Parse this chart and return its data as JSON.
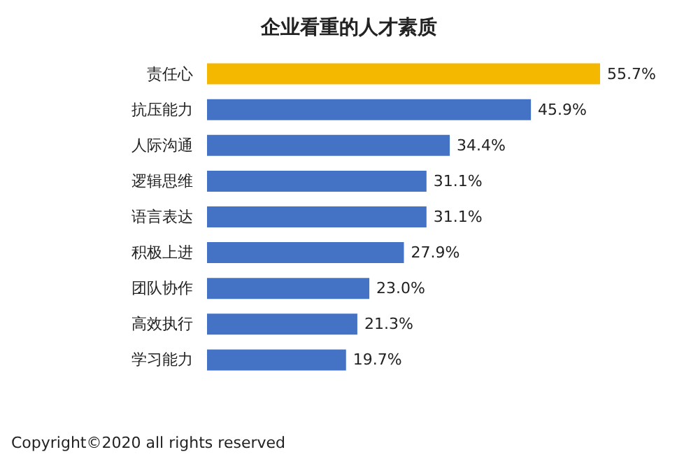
{
  "chart_data": {
    "type": "bar",
    "orientation": "horizontal",
    "title": "企业看重的人才素质",
    "categories": [
      "责任心",
      "抗压能力",
      "人际沟通",
      "逻辑思维",
      "语言表达",
      "积极上进",
      "团队协作",
      "高效执行",
      "学习能力"
    ],
    "values": [
      55.7,
      45.9,
      34.4,
      31.1,
      31.1,
      27.9,
      23.0,
      21.3,
      19.7
    ],
    "colors": [
      "#f5b800",
      "#4472c4",
      "#4472c4",
      "#4472c4",
      "#4472c4",
      "#4472c4",
      "#4472c4",
      "#4472c4",
      "#4472c4"
    ],
    "value_labels": [
      "55.7%",
      "45.9%",
      "34.4%",
      "31.1%",
      "31.1%",
      "27.9%",
      "23.0%",
      "21.3%",
      "19.7%"
    ],
    "tick_labels": "y",
    "annotations": [
      "Copyright©2020 all rights reserved"
    ]
  }
}
